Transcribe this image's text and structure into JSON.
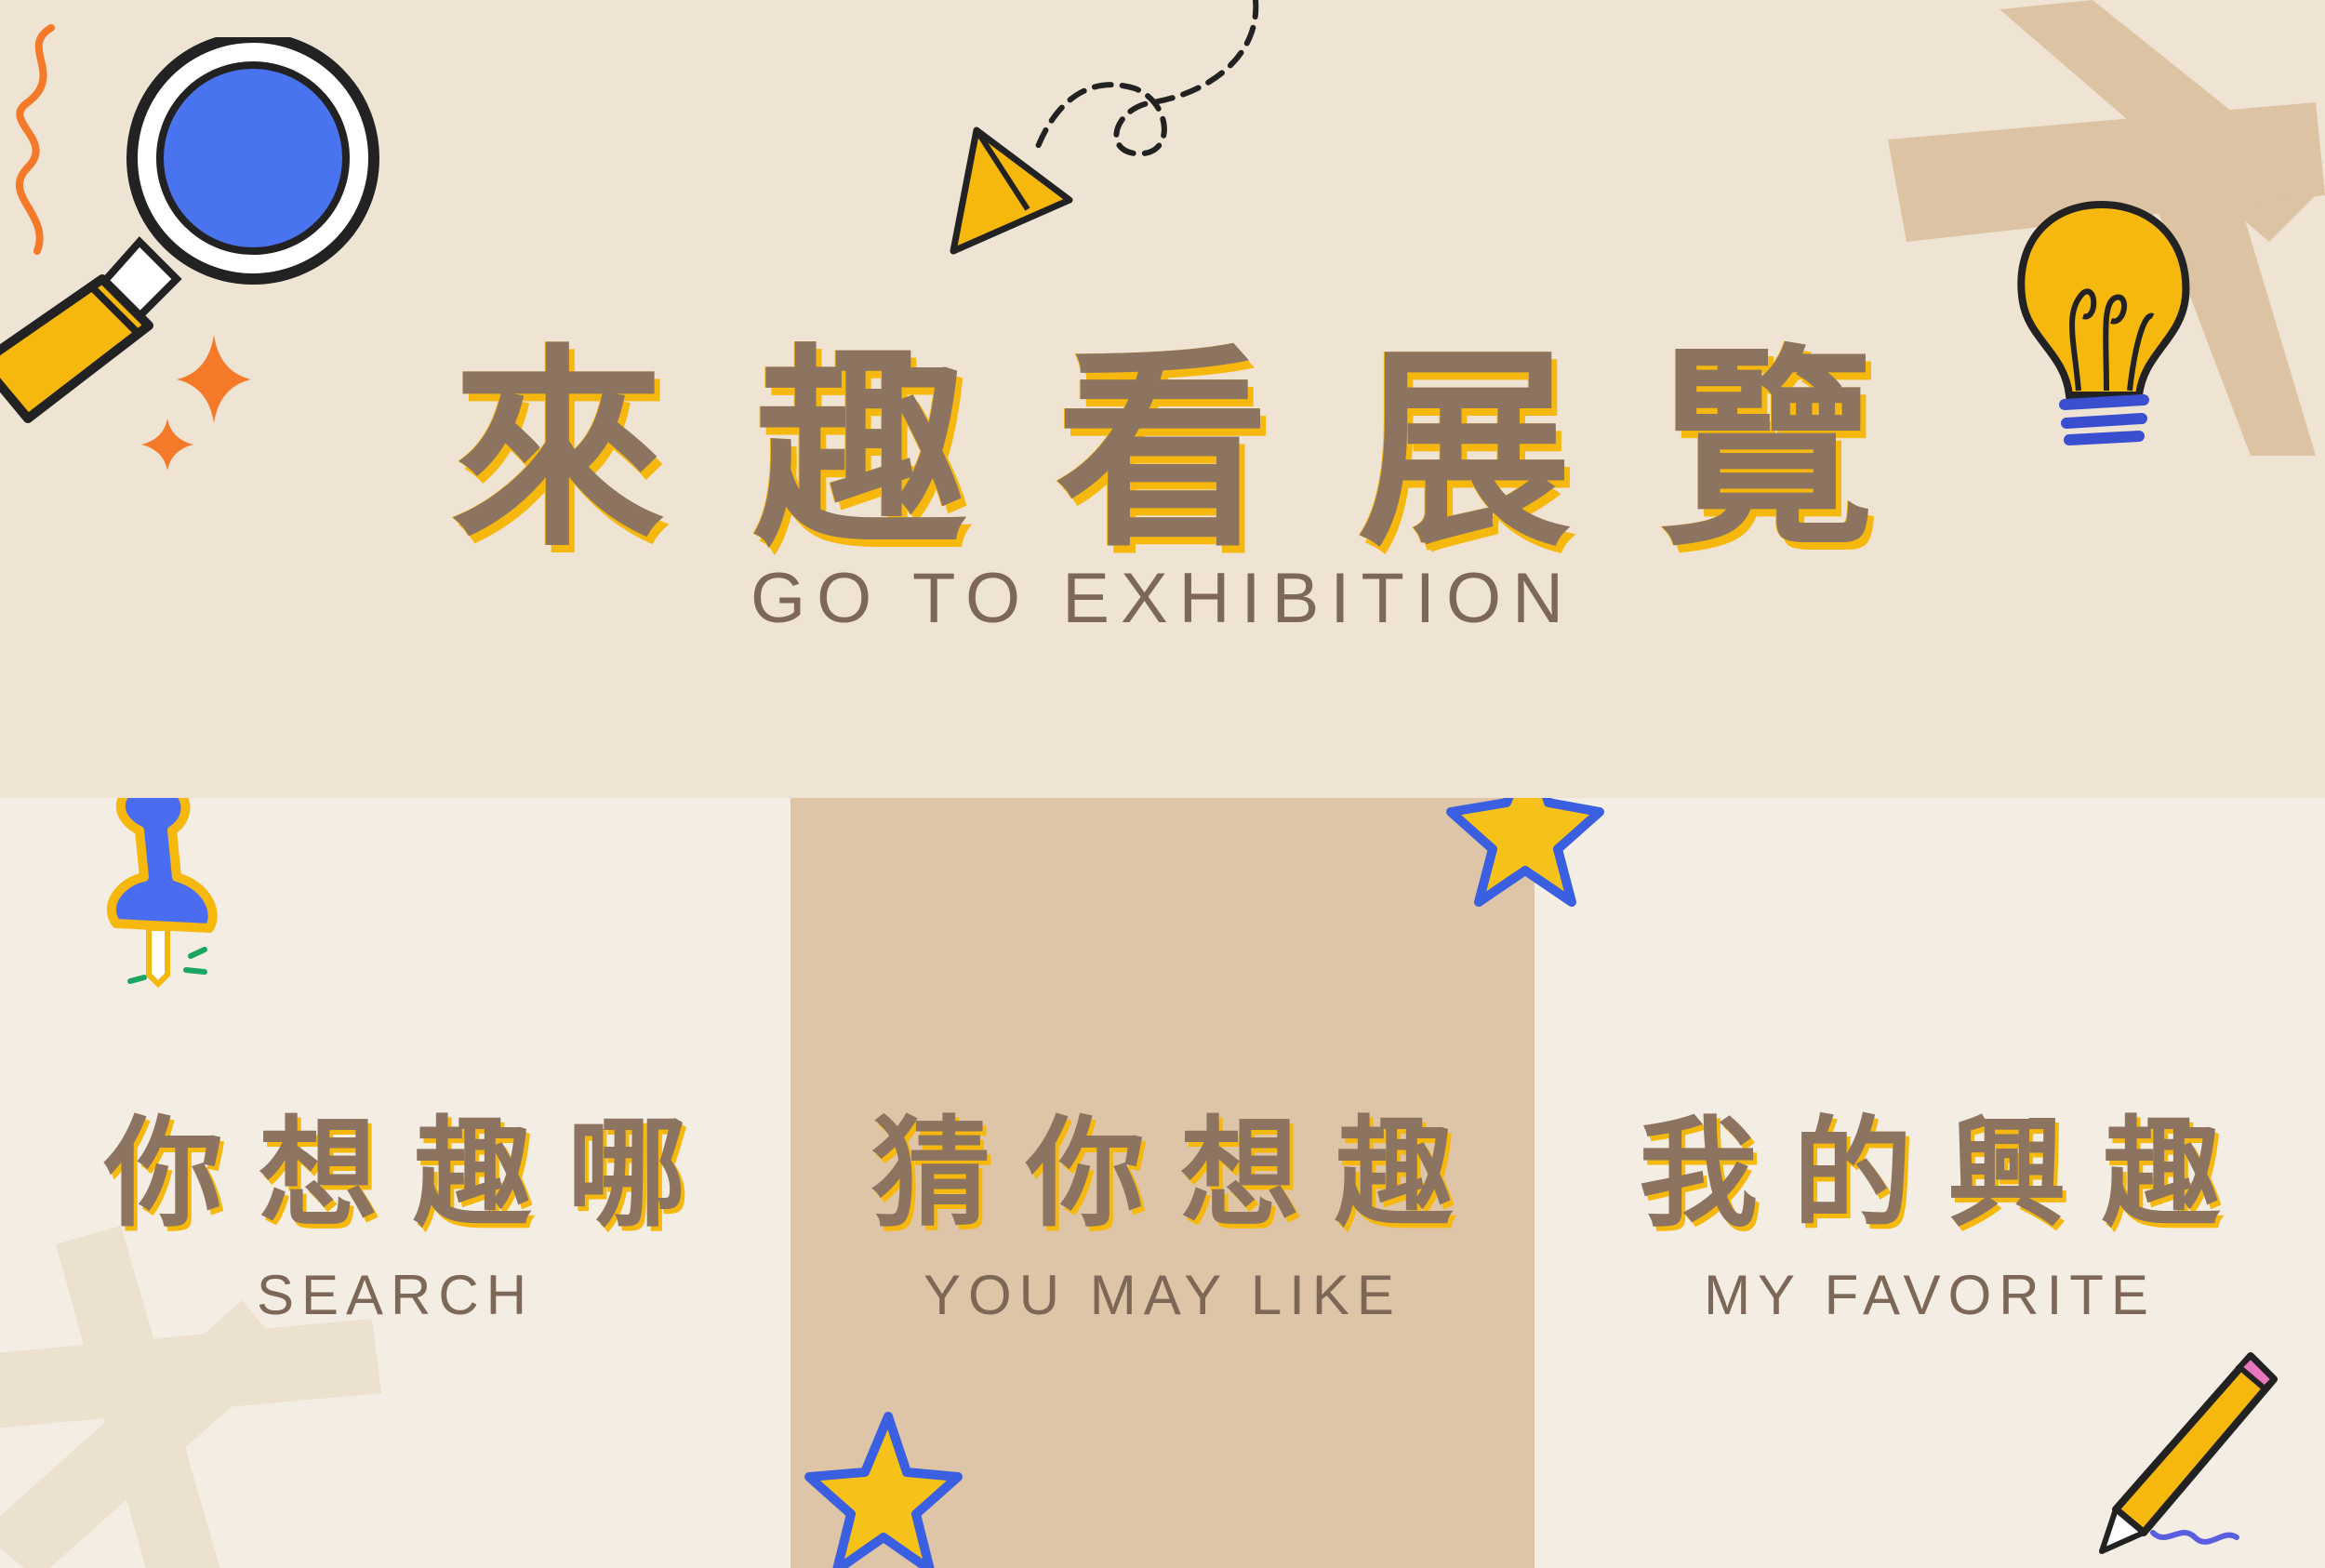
{
  "header": {
    "title_cjk": "來趣看展覽",
    "title_en": "GO TO EXHIBITION"
  },
  "cards": [
    {
      "title": "你想趣哪",
      "subtitle": "SEARCH",
      "icon": "pushpin-icon"
    },
    {
      "title": "猜你想趣",
      "subtitle": "YOU MAY LIKE",
      "icon": "star-icon"
    },
    {
      "title": "我的興趣",
      "subtitle": "MY FAVORITE",
      "icon": "pencil-icon"
    }
  ],
  "colors": {
    "top_bg": "#efe3d3",
    "bottom_bg": "#f4ede4",
    "middle_panel": "#dec5a8",
    "text_brown": "#8c7460",
    "accent_yellow": "#f6b80d",
    "accent_blue": "#4a6cf0",
    "accent_orange": "#f47a2a"
  }
}
